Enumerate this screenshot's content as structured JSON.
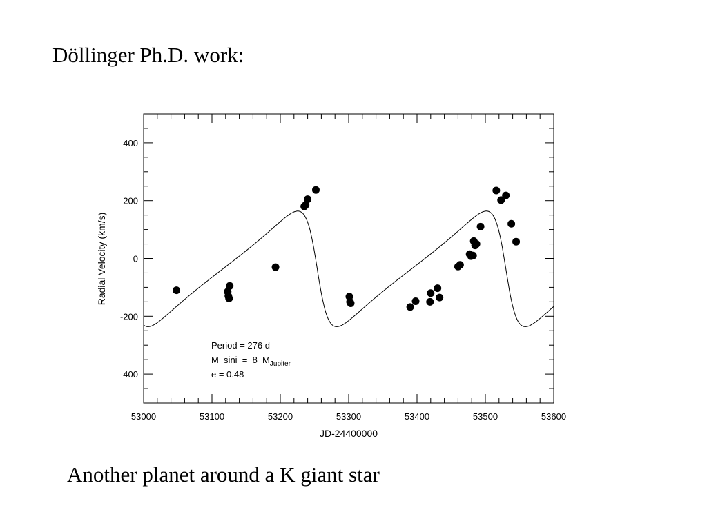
{
  "slide": {
    "title": "Döllinger Ph.D. work:",
    "caption": "Another planet around a  K giant star"
  },
  "chart_data": {
    "type": "scatter",
    "xlabel": "JD-24400000",
    "ylabel": "Radial Velocity (km/s)",
    "xlim": [
      53000,
      53600
    ],
    "ylim": [
      -500,
      500
    ],
    "xticks": [
      53000,
      53100,
      53200,
      53300,
      53400,
      53500,
      53600
    ],
    "yticks": [
      -400,
      -200,
      0,
      200,
      400
    ],
    "grid": false,
    "annotation": {
      "period": "Period = 276 d",
      "msini_prefix": "M  sini  =  8  M",
      "msini_sub": "Jupiter",
      "ecc": "e = 0.48"
    },
    "orbit_fit": {
      "period": 276,
      "eccentricity": 0.48,
      "periastron_jd": 53254,
      "k": 200,
      "gamma": -36,
      "omega_deg": 90
    },
    "series": [
      {
        "x": [
          53048,
          53123,
          53124,
          53125,
          53126,
          53193,
          53235,
          53237,
          53240,
          53252,
          53301,
          53302,
          53303,
          53390,
          53398,
          53419,
          53420,
          53430,
          53433,
          53460,
          53463,
          53477,
          53479,
          53482,
          53483,
          53485,
          53487,
          53493,
          53516,
          53523,
          53530,
          53538,
          53545
        ],
        "y": [
          -110,
          -115,
          -130,
          -138,
          -95,
          -30,
          180,
          185,
          205,
          237,
          -132,
          -150,
          -155,
          -168,
          -148,
          -150,
          -120,
          -103,
          -135,
          -28,
          -22,
          15,
          8,
          10,
          60,
          45,
          50,
          110,
          235,
          202,
          218,
          120,
          58
        ]
      }
    ]
  }
}
